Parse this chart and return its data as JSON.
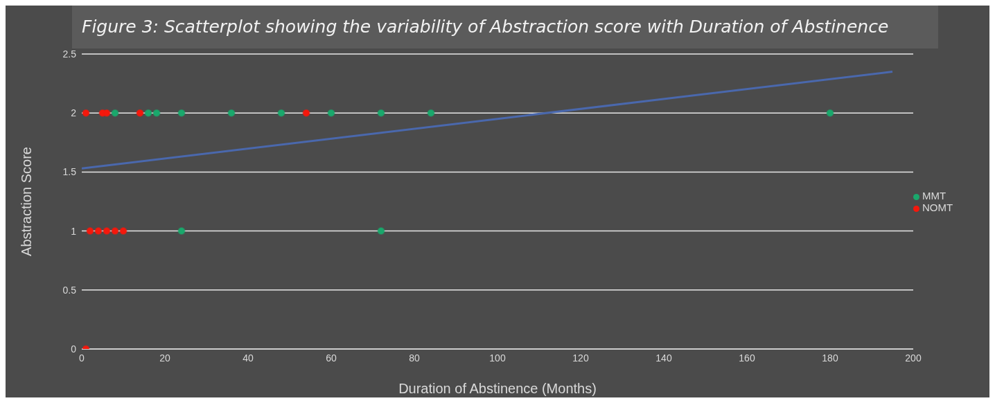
{
  "chart_data": {
    "type": "scatter",
    "title": "Figure 3: Scatterplot showing the variability of Abstraction score with Duration of Abstinence",
    "xlabel": "Duration of Abstinence (Months)",
    "ylabel": "Abstraction Score",
    "xlim": [
      0,
      200
    ],
    "xticks": [
      0,
      20,
      40,
      60,
      80,
      100,
      120,
      140,
      160,
      180,
      200
    ],
    "ylim": [
      0,
      2.5
    ],
    "yticks": [
      0,
      0.5,
      1,
      1.5,
      2,
      2.5
    ],
    "grid": "y",
    "legend": "right",
    "marker": "circle",
    "series": [
      {
        "name": "MMT",
        "color": "#1aa86c",
        "x": [
          8,
          16,
          18,
          24,
          36,
          48,
          60,
          72,
          84,
          180,
          24,
          72
        ],
        "values": [
          2,
          2,
          2,
          2,
          2,
          2,
          2,
          2,
          2,
          2,
          1,
          1
        ]
      },
      {
        "name": "NOMT",
        "color": "#f5180c",
        "x": [
          1,
          5,
          6,
          14,
          54,
          2,
          4,
          6,
          8,
          10,
          1
        ],
        "values": [
          2,
          2,
          2,
          2,
          2,
          1,
          1,
          1,
          1,
          1,
          0
        ]
      },
      {
        "type": "line",
        "marker": "none",
        "color": "#4a68ad",
        "x": [
          0,
          195
        ],
        "values": [
          1.53,
          2.35
        ]
      }
    ]
  }
}
